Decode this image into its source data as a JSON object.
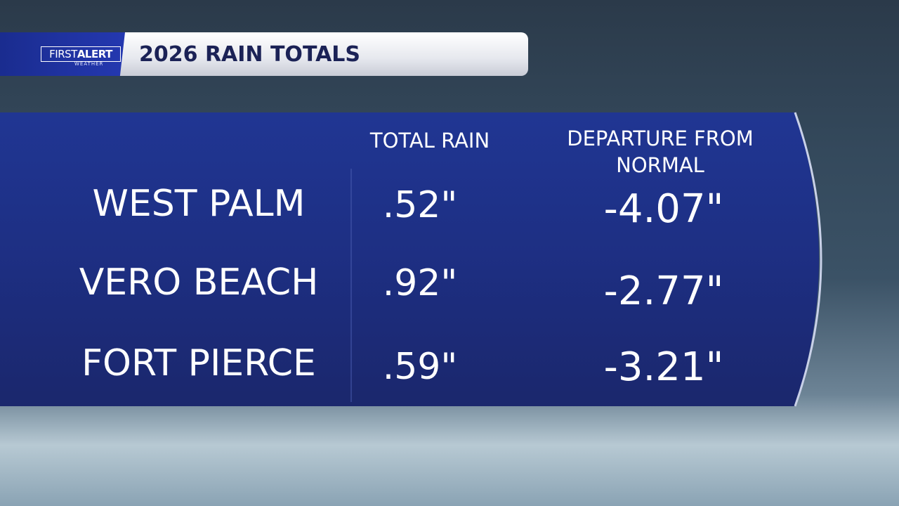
{
  "header": {
    "logo": {
      "first": "FIRST",
      "alert": "ALERT",
      "sub": "WEATHER"
    },
    "title": "2026 RAIN TOTALS"
  },
  "table": {
    "columns": [
      "TOTAL RAIN",
      "DEPARTURE FROM NORMAL"
    ],
    "rows": [
      [
        "WEST PALM",
        ".52\"",
        "-4.07\""
      ],
      [
        "VERO BEACH",
        ".92\"",
        "-2.77\""
      ],
      [
        "FORT PIERCE",
        ".59\"",
        "-3.21\""
      ]
    ]
  }
}
